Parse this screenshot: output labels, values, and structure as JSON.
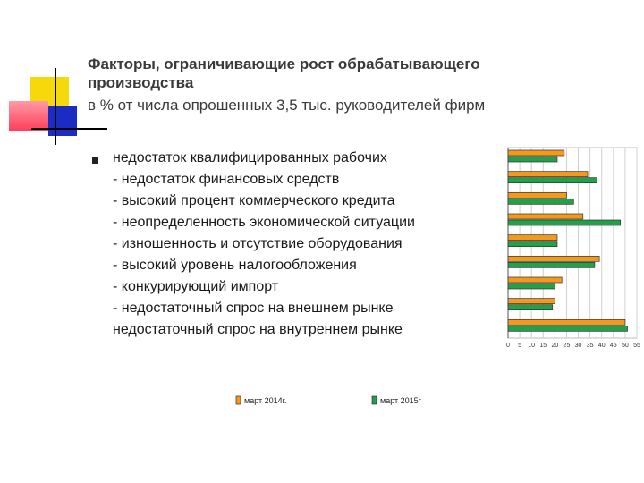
{
  "title_line1": "Факторы, ограничивающие рост обрабатывающего",
  "title_line2": "производства",
  "subtitle": "в % от числа опрошенных 3,5 тыс. руководителей фирм",
  "factors": [
    "недостаток квалифицированных рабочих",
    "- недостаток финансовых средств",
    "- высокий процент  коммерческого кредита",
    "- неопределенность экономической ситуации",
    "- изношенность и отсутствие оборудования",
    "- высокий уровень налогообложения",
    "- конкурирующий импорт",
    "- недостаточный спрос на внешнем рынке",
    "недостаточный спрос на внутреннем рынке"
  ],
  "chart_data": {
    "type": "bar",
    "orientation": "horizontal",
    "categories": [
      "недостаток квалифицированных рабочих",
      "- недостаток финансовых средств",
      "- высокий процент  коммерческого кредита",
      "- неопределенность экономической ситуации",
      "- изношенность и отсутствие оборудования",
      "- высокий уровень налогообложения",
      "- конкурирующий импорт",
      "- недостаточный спрос на внешнем рынке",
      "недостаточный спрос на внутреннем рынке"
    ],
    "series": [
      {
        "name": "март 2014г.",
        "color": "#f39a1c",
        "values": [
          24,
          34,
          25,
          32,
          21,
          39,
          23,
          20,
          50
        ]
      },
      {
        "name": "март 2015г",
        "color": "#22a04a",
        "values": [
          21,
          38,
          28,
          48,
          21,
          37,
          20,
          19,
          51
        ]
      }
    ],
    "x_ticks": [
      "0",
      "5",
      "10",
      "15",
      "20",
      "25",
      "30",
      "35",
      "40",
      "45",
      "50",
      "55"
    ],
    "xlim": [
      0,
      55
    ],
    "grid": true,
    "legend_position": "bottom"
  }
}
